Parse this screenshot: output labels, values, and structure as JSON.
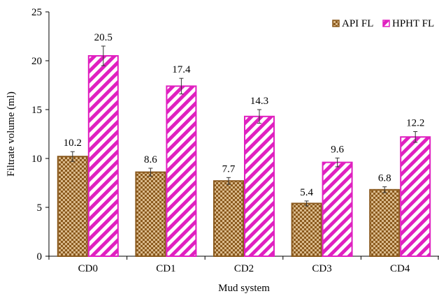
{
  "chart_data": {
    "type": "bar",
    "title": "",
    "xlabel": "Mud system",
    "ylabel": "Filtrate volume (ml)",
    "ylim": [
      0,
      25
    ],
    "yticks": [
      0,
      5,
      10,
      15,
      20,
      25
    ],
    "grid": false,
    "legend_position": "top-right",
    "categories": [
      "CD0",
      "CD1",
      "CD2",
      "CD3",
      "CD4"
    ],
    "series": [
      {
        "name": "API FL",
        "values": [
          10.2,
          8.6,
          7.7,
          5.4,
          6.8
        ],
        "labels": [
          "10.2",
          "8.6",
          "7.7",
          "5.4",
          "6.8"
        ],
        "error": [
          0.5,
          0.4,
          0.35,
          0.25,
          0.3
        ],
        "fill_color": "#c8a36a",
        "pattern_color": "#8b5a1e",
        "pattern": "checker"
      },
      {
        "name": "HPHT FL",
        "values": [
          20.5,
          17.4,
          14.3,
          9.6,
          12.2
        ],
        "labels": [
          "20.5",
          "17.4",
          "14.3",
          "9.6",
          "12.2"
        ],
        "error": [
          1.0,
          0.8,
          0.7,
          0.45,
          0.55
        ],
        "fill_color": "#ffffff",
        "pattern_color": "#e020c0",
        "pattern": "diagonal"
      }
    ]
  }
}
